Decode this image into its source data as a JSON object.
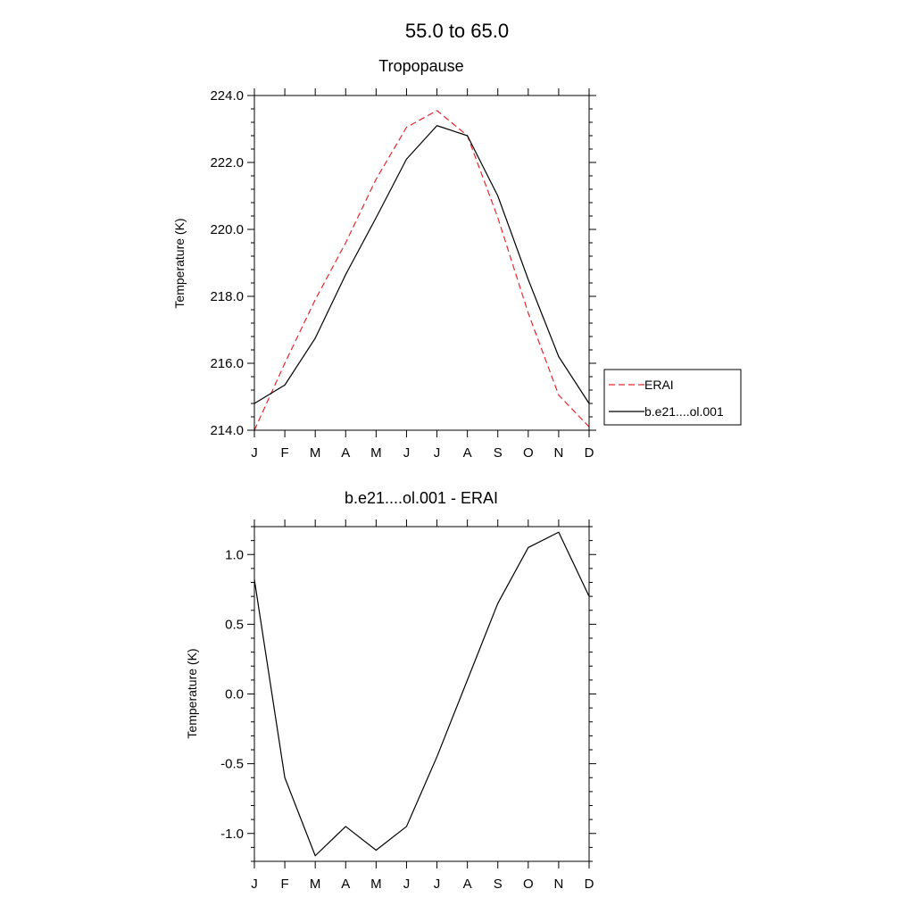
{
  "figure": {
    "title": "55.0 to  65.0"
  },
  "chart_data": [
    {
      "type": "line",
      "title": "Tropopause",
      "xlabel": "",
      "ylabel": "Temperature (K)",
      "categories": [
        "J",
        "F",
        "M",
        "A",
        "M",
        "J",
        "J",
        "A",
        "S",
        "O",
        "N",
        "D"
      ],
      "ylim": [
        214.0,
        224.0
      ],
      "yticks": [
        214.0,
        216.0,
        218.0,
        220.0,
        222.0,
        224.0
      ],
      "ytick_labels": [
        "214.0",
        "216.0",
        "218.0",
        "220.0",
        "222.0",
        "224.0"
      ],
      "grid": false,
      "legend": "right",
      "series": [
        {
          "name": "ERAI",
          "color": "#e8262c",
          "dashed": true,
          "values": [
            214.0,
            216.0,
            217.9,
            219.6,
            221.5,
            223.05,
            223.55,
            222.8,
            220.35,
            217.5,
            215.05,
            214.1
          ]
        },
        {
          "name": "b.e21....ol.001",
          "color": "#000000",
          "dashed": false,
          "values": [
            214.8,
            215.35,
            216.75,
            218.65,
            220.35,
            222.1,
            223.1,
            222.8,
            221.0,
            218.5,
            216.2,
            214.8
          ]
        }
      ]
    },
    {
      "type": "line",
      "title": "b.e21....ol.001 - ERAI",
      "xlabel": "",
      "ylabel": "Temperature (K)",
      "categories": [
        "J",
        "F",
        "M",
        "A",
        "M",
        "J",
        "J",
        "A",
        "S",
        "O",
        "N",
        "D"
      ],
      "ylim": [
        -1.2,
        1.2
      ],
      "yticks": [
        -1.0,
        -0.5,
        0.0,
        0.5,
        1.0
      ],
      "ytick_labels": [
        "-1.0",
        "-0.5",
        "0.0",
        "0.5",
        "1.0"
      ],
      "grid": false,
      "series": [
        {
          "color": "#000000",
          "dashed": false,
          "values": [
            0.82,
            -0.6,
            -1.16,
            -0.95,
            -1.12,
            -0.95,
            -0.45,
            0.1,
            0.65,
            1.05,
            1.16,
            0.7
          ]
        }
      ]
    }
  ]
}
